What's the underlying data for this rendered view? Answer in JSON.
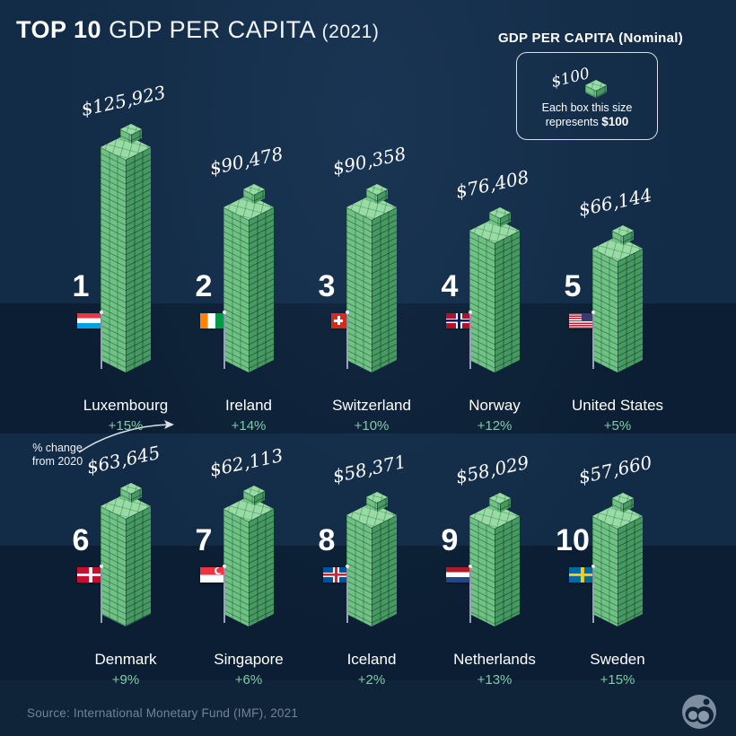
{
  "title": {
    "bold": "TOP 10",
    "rest": " GDP PER CAPITA ",
    "year": "(2021)"
  },
  "legend": {
    "heading": "GDP PER CAPITA (Nominal)",
    "box_label": "$100",
    "caption_line1": "Each box this size",
    "caption_line2_prefix": "represents ",
    "caption_line2_bold": "$100"
  },
  "annotation": {
    "line1": "% change",
    "line2": "from 2020"
  },
  "footer": {
    "source": "Source: International Monetary Fund (IMF), 2021"
  },
  "colors": {
    "background": "#122b46",
    "background_dark_band": "#0b1e33",
    "tower_light_face": "#6fc184",
    "tower_dark_face": "#479962",
    "tower_top": "#98dba5",
    "pct_change_text": "#82cbaa",
    "source_text": "#72839b"
  },
  "chart_data": {
    "type": "bar",
    "title": "TOP 10 GDP PER CAPITA (2021)",
    "subtitle": "GDP PER CAPITA (Nominal)",
    "unit": "USD",
    "note": "Each box this size represents $100",
    "annotation": "% change from 2020",
    "ranks": [
      "1",
      "2",
      "3",
      "4",
      "5",
      "6",
      "7",
      "8",
      "9",
      "10"
    ],
    "categories": [
      "Luxembourg",
      "Ireland",
      "Switzerland",
      "Norway",
      "United States",
      "Denmark",
      "Singapore",
      "Iceland",
      "Netherlands",
      "Sweden"
    ],
    "values": [
      125923,
      90478,
      90358,
      76408,
      66144,
      63645,
      62113,
      58371,
      58029,
      57660
    ],
    "value_labels": [
      "$125,923",
      "$90,478",
      "$90,358",
      "$76,408",
      "$66,144",
      "$63,645",
      "$62,113",
      "$58,371",
      "$58,029",
      "$57,660"
    ],
    "pct_change_from_2020": [
      15,
      14,
      10,
      12,
      5,
      9,
      6,
      2,
      13,
      15
    ],
    "pct_labels": [
      "+15%",
      "+14%",
      "+10%",
      "+12%",
      "+5%",
      "+9%",
      "+6%",
      "+2%",
      "+13%",
      "+15%"
    ],
    "flags": [
      "luxembourg",
      "ireland",
      "switzerland",
      "norway",
      "united-states",
      "denmark",
      "singapore",
      "iceland",
      "netherlands",
      "sweden"
    ],
    "source": "Source: International Monetary Fund (IMF), 2021"
  }
}
